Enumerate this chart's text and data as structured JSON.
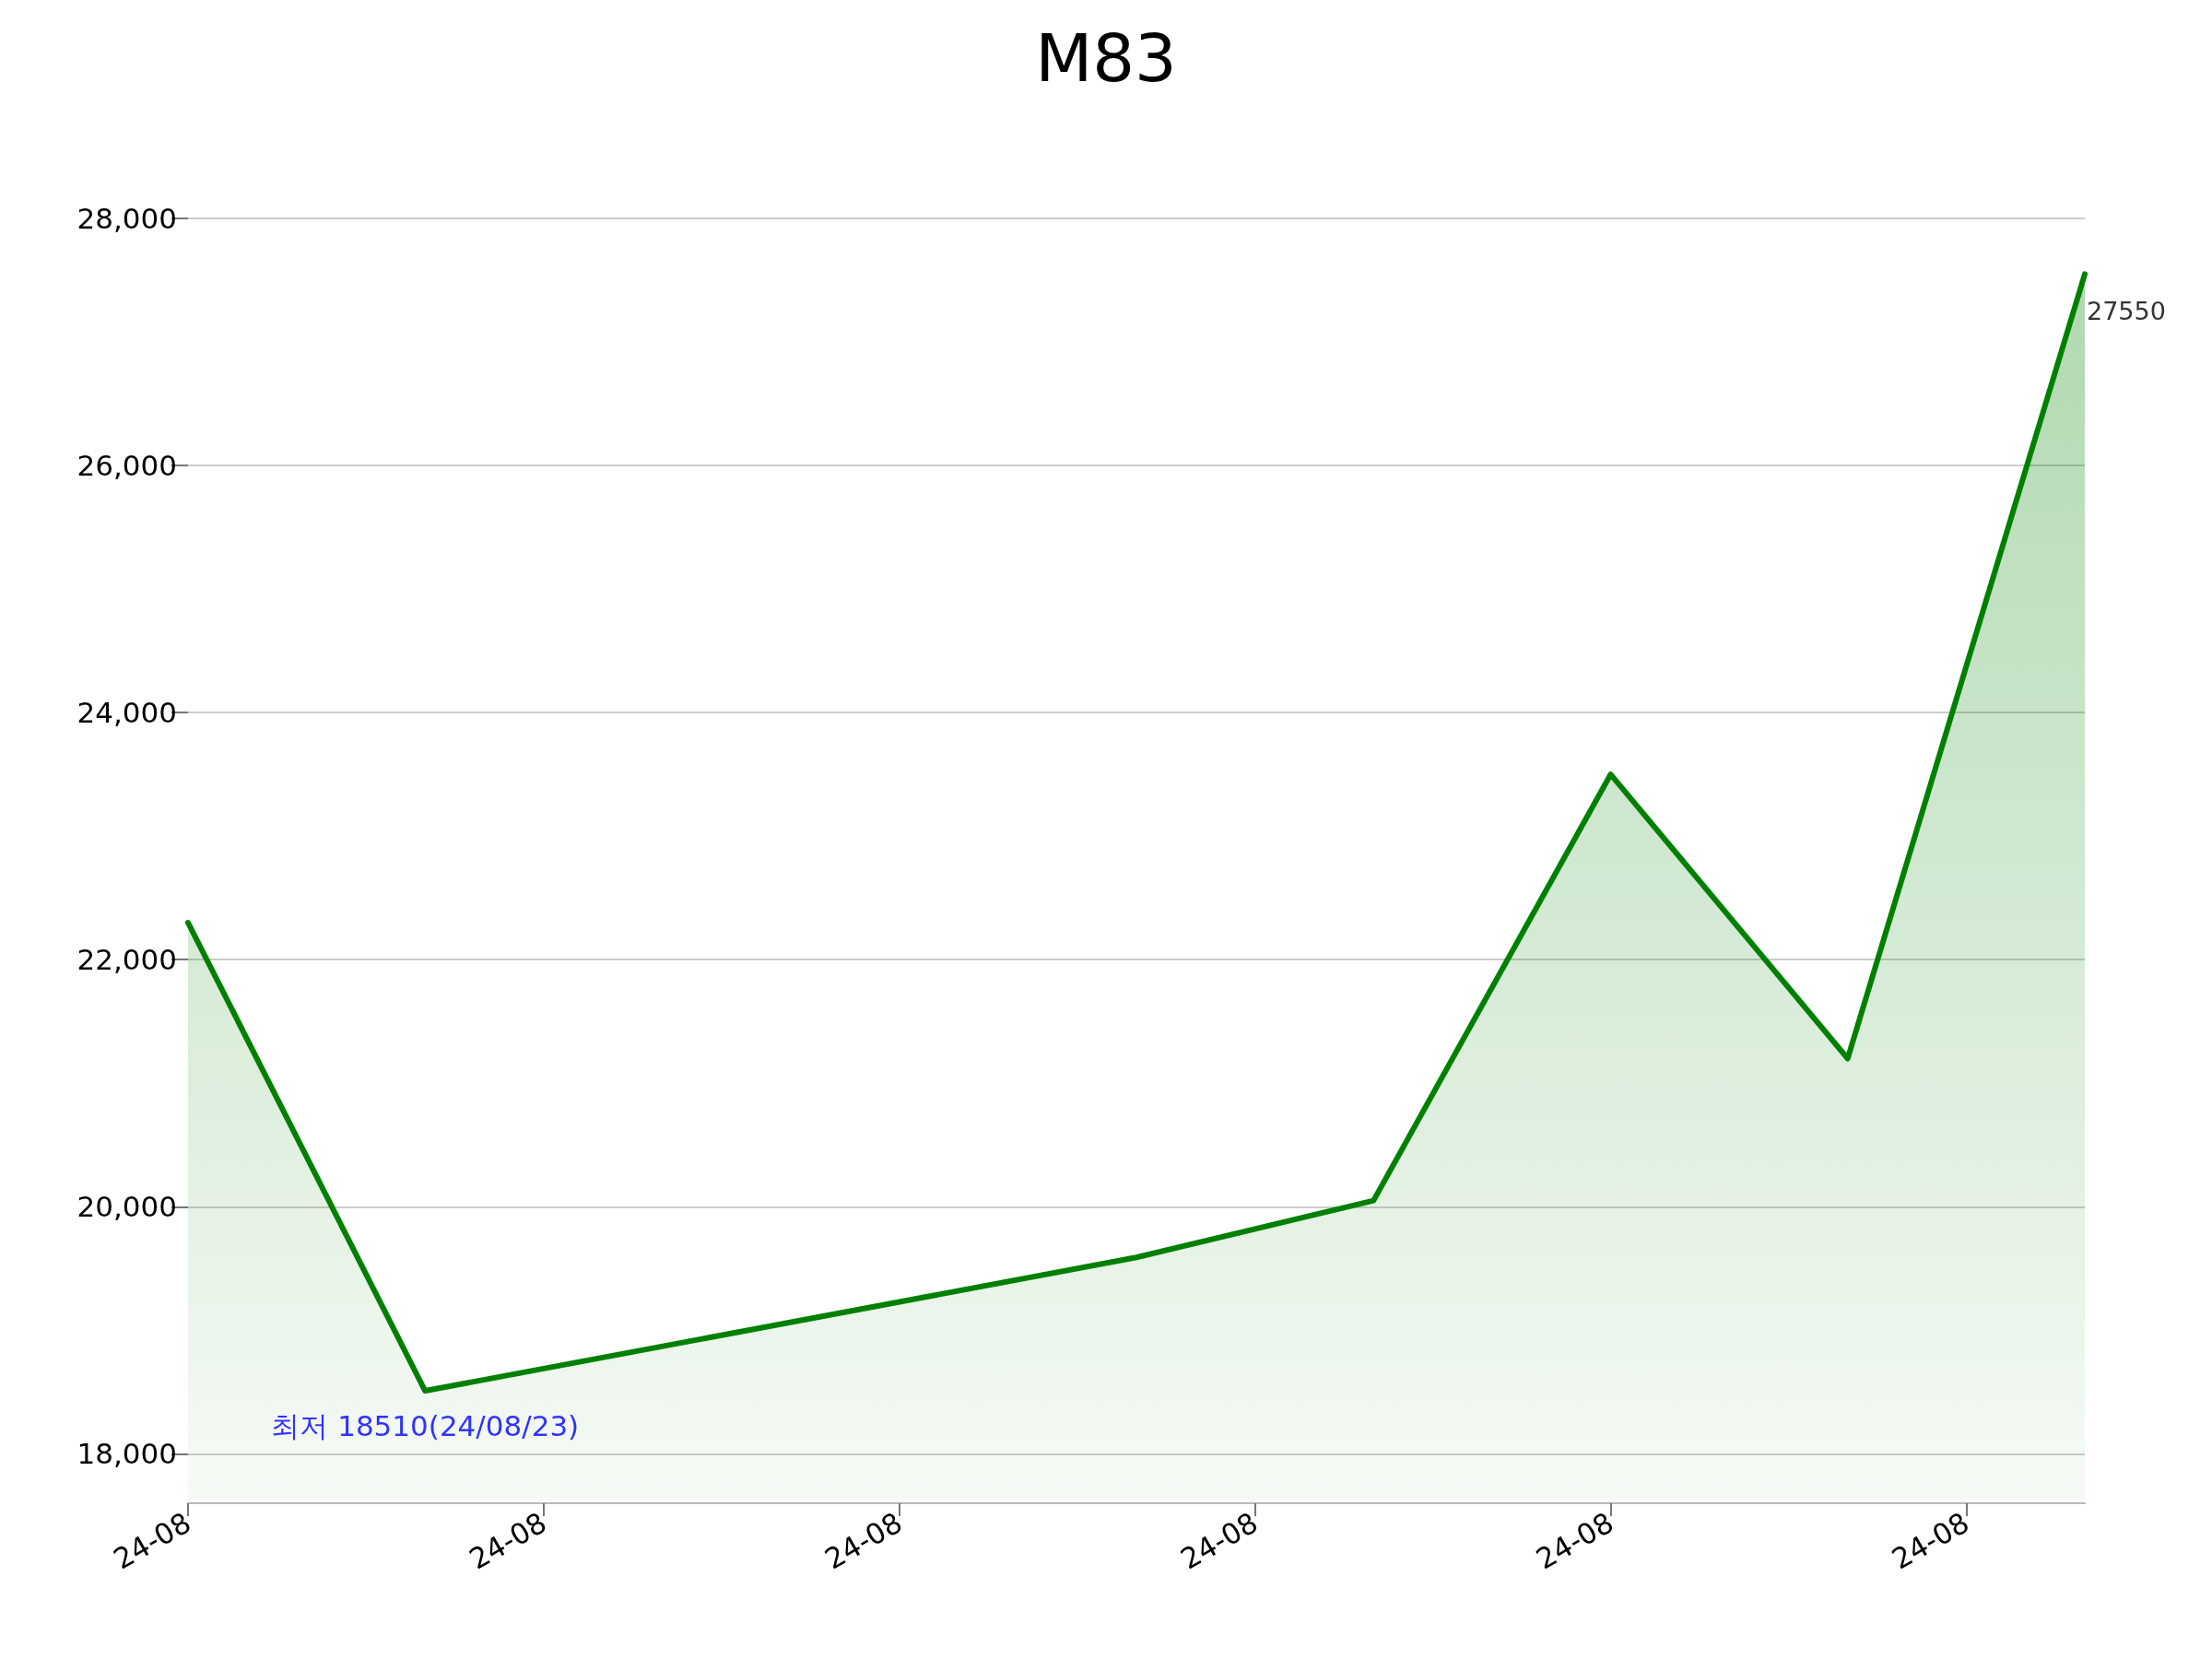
{
  "chart_data": {
    "type": "area",
    "title": "M83",
    "x": [
      "--08-22",
      "--08-23",
      "--08-26",
      "--08-27",
      "--08-28",
      "--08-29",
      "--08-30"
    ],
    "series": [
      {
        "color": "#008000",
        "values": [
          22300,
          18510,
          19590,
          20050,
          23500,
          21200,
          27550
        ]
      }
    ],
    "xlim": [
      "--08-22",
      "--08-30"
    ],
    "xticks": [
      {
        "value": "--08-22",
        "label": "24-08"
      },
      {
        "value": "--08-23T12:00",
        "label": "24-08"
      },
      {
        "value": "--08-25",
        "label": "24-08"
      },
      {
        "value": "--08-26T12:00",
        "label": "24-08"
      },
      {
        "value": "--08-28",
        "label": "24-08"
      },
      {
        "value": "--08-29T12:00",
        "label": "24-08"
      }
    ],
    "ylim": [
      17600,
      28000
    ],
    "yticks": [
      {
        "value": 18000,
        "label": "18,000"
      },
      {
        "value": 20000,
        "label": "20,000"
      },
      {
        "value": 22000,
        "label": "22,000"
      },
      {
        "value": 24000,
        "label": "24,000"
      },
      {
        "value": 26000,
        "label": "26,000"
      },
      {
        "value": 28000,
        "label": "28,000"
      }
    ],
    "grid": "y",
    "marker": "none",
    "line_style": "solid",
    "annotations": [
      {
        "text": "27550",
        "x": "--08-30",
        "y": 27550
      },
      {
        "text": "최저 18510(24/08/23)",
        "x": "--08-23",
        "y": 18510
      }
    ]
  }
}
